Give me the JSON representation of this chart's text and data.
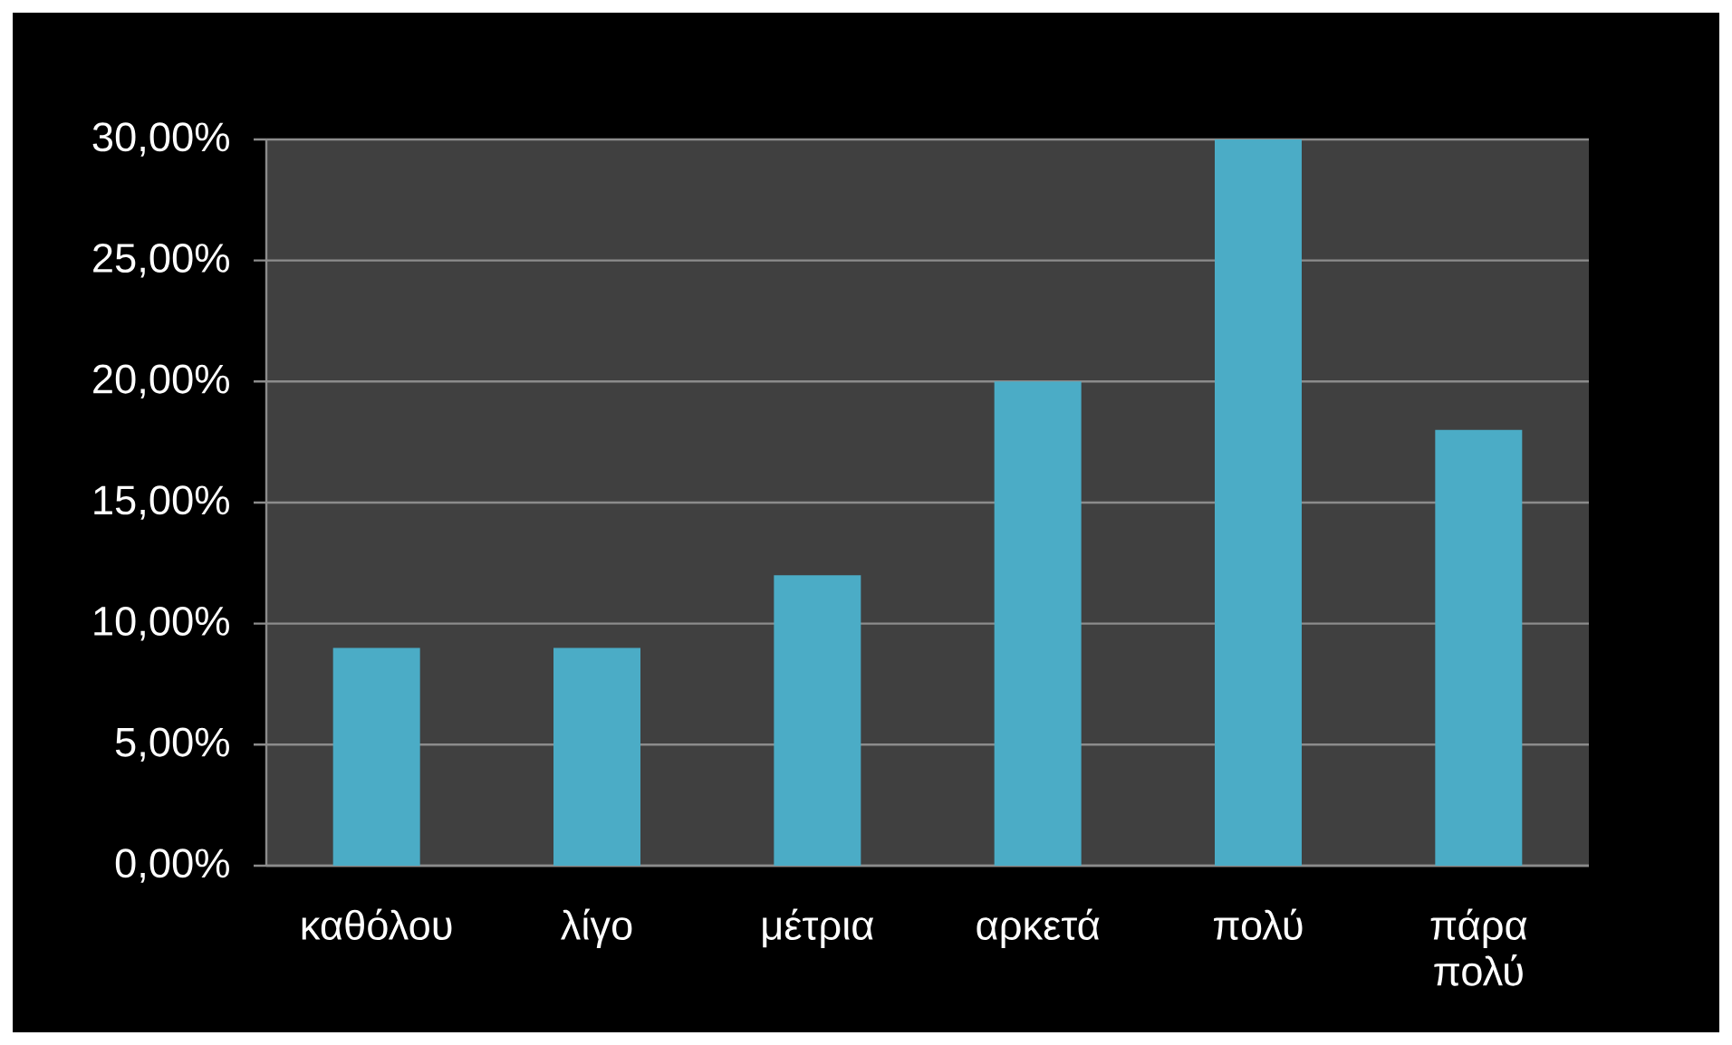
{
  "chart_data": {
    "type": "bar",
    "categories": [
      "καθόλου",
      "λίγο",
      "μέτρια",
      "αρκετά",
      "πολύ",
      "πάρα πολύ"
    ],
    "values": [
      9,
      9,
      12,
      20,
      30,
      18
    ],
    "color": "#4bacc6",
    "ylim": [
      0,
      30
    ],
    "yticks": [
      {
        "value": 0,
        "label": "0,00%"
      },
      {
        "value": 5,
        "label": "5,00%"
      },
      {
        "value": 10,
        "label": "10,00%"
      },
      {
        "value": 15,
        "label": "15,00%"
      },
      {
        "value": 20,
        "label": "20,00%"
      },
      {
        "value": 25,
        "label": "25,00%"
      },
      {
        "value": 30,
        "label": "30,00%"
      }
    ],
    "grid": "y"
  }
}
